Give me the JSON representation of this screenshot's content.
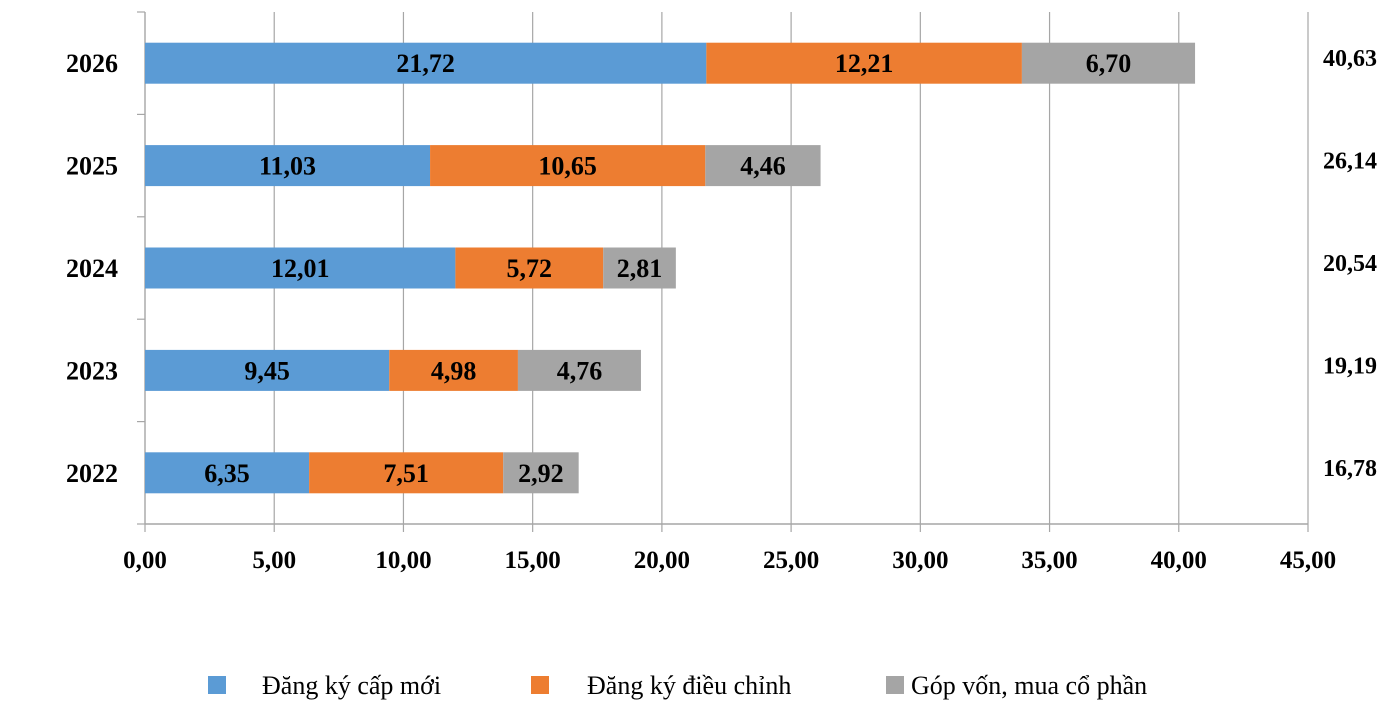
{
  "chart_data": {
    "type": "bar",
    "orientation": "horizontal",
    "stacked": true,
    "categories": [
      "2026",
      "2025",
      "2024",
      "2023",
      "2022"
    ],
    "series": [
      {
        "name": "Đăng ký cấp mới",
        "color": "#5B9BD5",
        "values": [
          21.72,
          11.03,
          12.01,
          9.45,
          6.35
        ],
        "labels": [
          "21,72",
          "11,03",
          "12,01",
          "9,45",
          "6,35"
        ]
      },
      {
        "name": "Đăng ký điều chỉnh",
        "color": "#ED7D31",
        "values": [
          12.21,
          10.65,
          5.72,
          4.98,
          7.51
        ],
        "labels": [
          "12,21",
          "10,65",
          "5,72",
          "4,98",
          "7,51"
        ]
      },
      {
        "name": "Góp vốn, mua cổ phần",
        "color": "#A5A5A5",
        "values": [
          6.7,
          4.46,
          2.81,
          4.76,
          2.92
        ],
        "labels": [
          "6,70",
          "4,46",
          "2,81",
          "4,76",
          "2,92"
        ]
      }
    ],
    "totals": [
      40.63,
      26.14,
      20.54,
      19.19,
      16.78
    ],
    "total_labels": [
      "40,63",
      "26,14",
      "20,54",
      "19,19",
      "16,78"
    ],
    "xlim": [
      0,
      45
    ],
    "xticks": [
      0,
      5,
      10,
      15,
      20,
      25,
      30,
      35,
      40,
      45
    ],
    "xtick_labels": [
      "0,00",
      "5,00",
      "10,00",
      "15,00",
      "20,00",
      "25,00",
      "30,00",
      "35,00",
      "40,00",
      "45,00"
    ],
    "grid": "vertical",
    "legend_position": "bottom",
    "axis_color": "#A6A6A6"
  }
}
